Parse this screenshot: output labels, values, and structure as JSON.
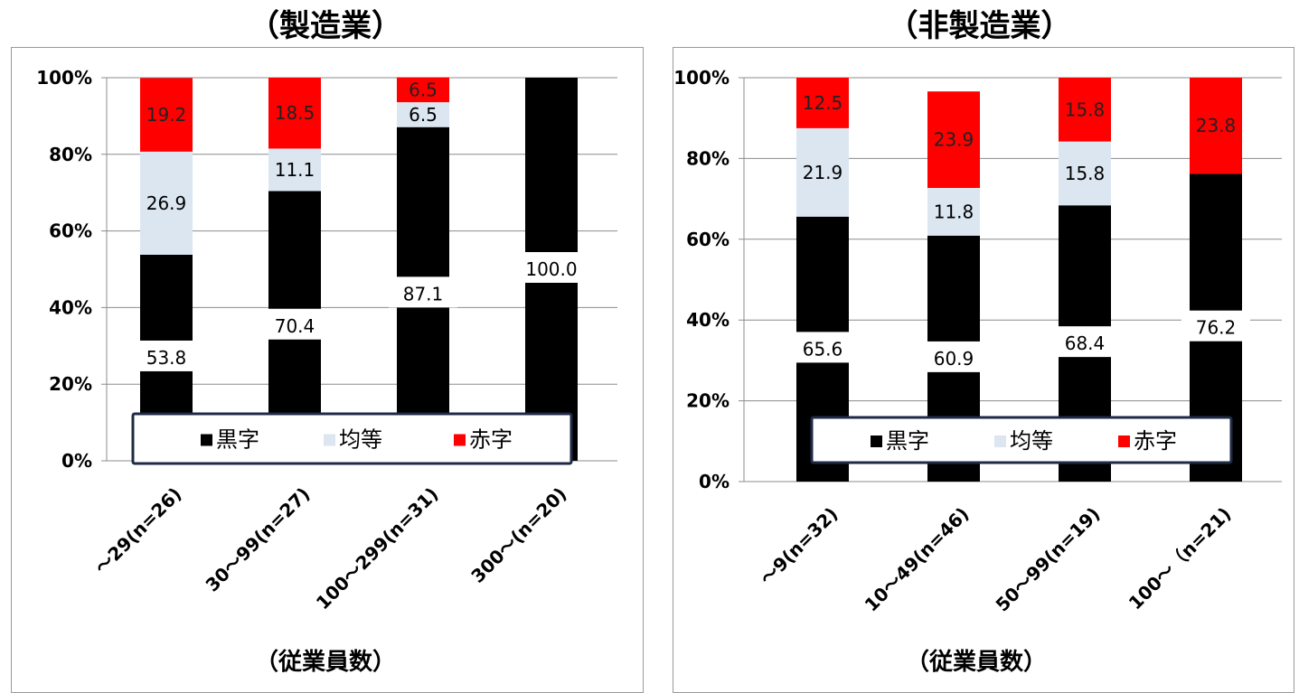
{
  "legend_labels": [
    "黒字",
    "均等",
    "赤字"
  ],
  "colors": {
    "black": "#000000",
    "even": "#dce6f1",
    "red": "#ff0000",
    "grid": "#8c8c8c",
    "legend_border": "#1f2a44"
  },
  "chart_data": [
    {
      "type": "bar",
      "stacked": true,
      "title": "（製造業）",
      "xlabel": "（従業員数）",
      "ylabel": "",
      "ylim": [
        0,
        100
      ],
      "yticks": [
        "0%",
        "20%",
        "40%",
        "60%",
        "80%",
        "100%"
      ],
      "categories": [
        "～29(n=26)",
        "30～99(n=27)",
        "100～299(n=31)",
        "300～(n=20)"
      ],
      "series": [
        {
          "name": "黒字",
          "values": [
            53.8,
            70.4,
            87.1,
            100.0
          ],
          "labels": [
            "53.8",
            "70.4",
            "87.1",
            "100.0"
          ]
        },
        {
          "name": "均等",
          "values": [
            26.9,
            11.1,
            6.5,
            0
          ],
          "labels": [
            "26.9",
            "11.1",
            "6.5",
            ""
          ]
        },
        {
          "name": "赤字",
          "values": [
            19.2,
            18.5,
            6.5,
            0
          ],
          "labels": [
            "19.2",
            "18.5",
            "6.5",
            ""
          ]
        }
      ],
      "legend": "bottom-inside",
      "grid": true
    },
    {
      "type": "bar",
      "stacked": true,
      "title": "（非製造業）",
      "xlabel": "（従業員数）",
      "ylabel": "",
      "ylim": [
        0,
        100
      ],
      "yticks": [
        "0%",
        "20%",
        "40%",
        "60%",
        "80%",
        "100%"
      ],
      "categories": [
        "～9(n=32)",
        "10～49(n=46)",
        "50～99(n=19)",
        "100～（n=21)"
      ],
      "series": [
        {
          "name": "黒字",
          "values": [
            65.6,
            60.9,
            68.4,
            76.2
          ],
          "labels": [
            "65.6",
            "60.9",
            "68.4",
            "76.2"
          ]
        },
        {
          "name": "均等",
          "values": [
            21.9,
            11.8,
            15.8,
            0
          ],
          "labels": [
            "21.9",
            "11.8",
            "15.8",
            ""
          ]
        },
        {
          "name": "赤字",
          "values": [
            12.5,
            23.9,
            15.8,
            23.8
          ],
          "labels": [
            "12.5",
            "23.9",
            "15.8",
            "23.8"
          ]
        }
      ],
      "legend": "bottom-inside",
      "grid": true
    }
  ]
}
